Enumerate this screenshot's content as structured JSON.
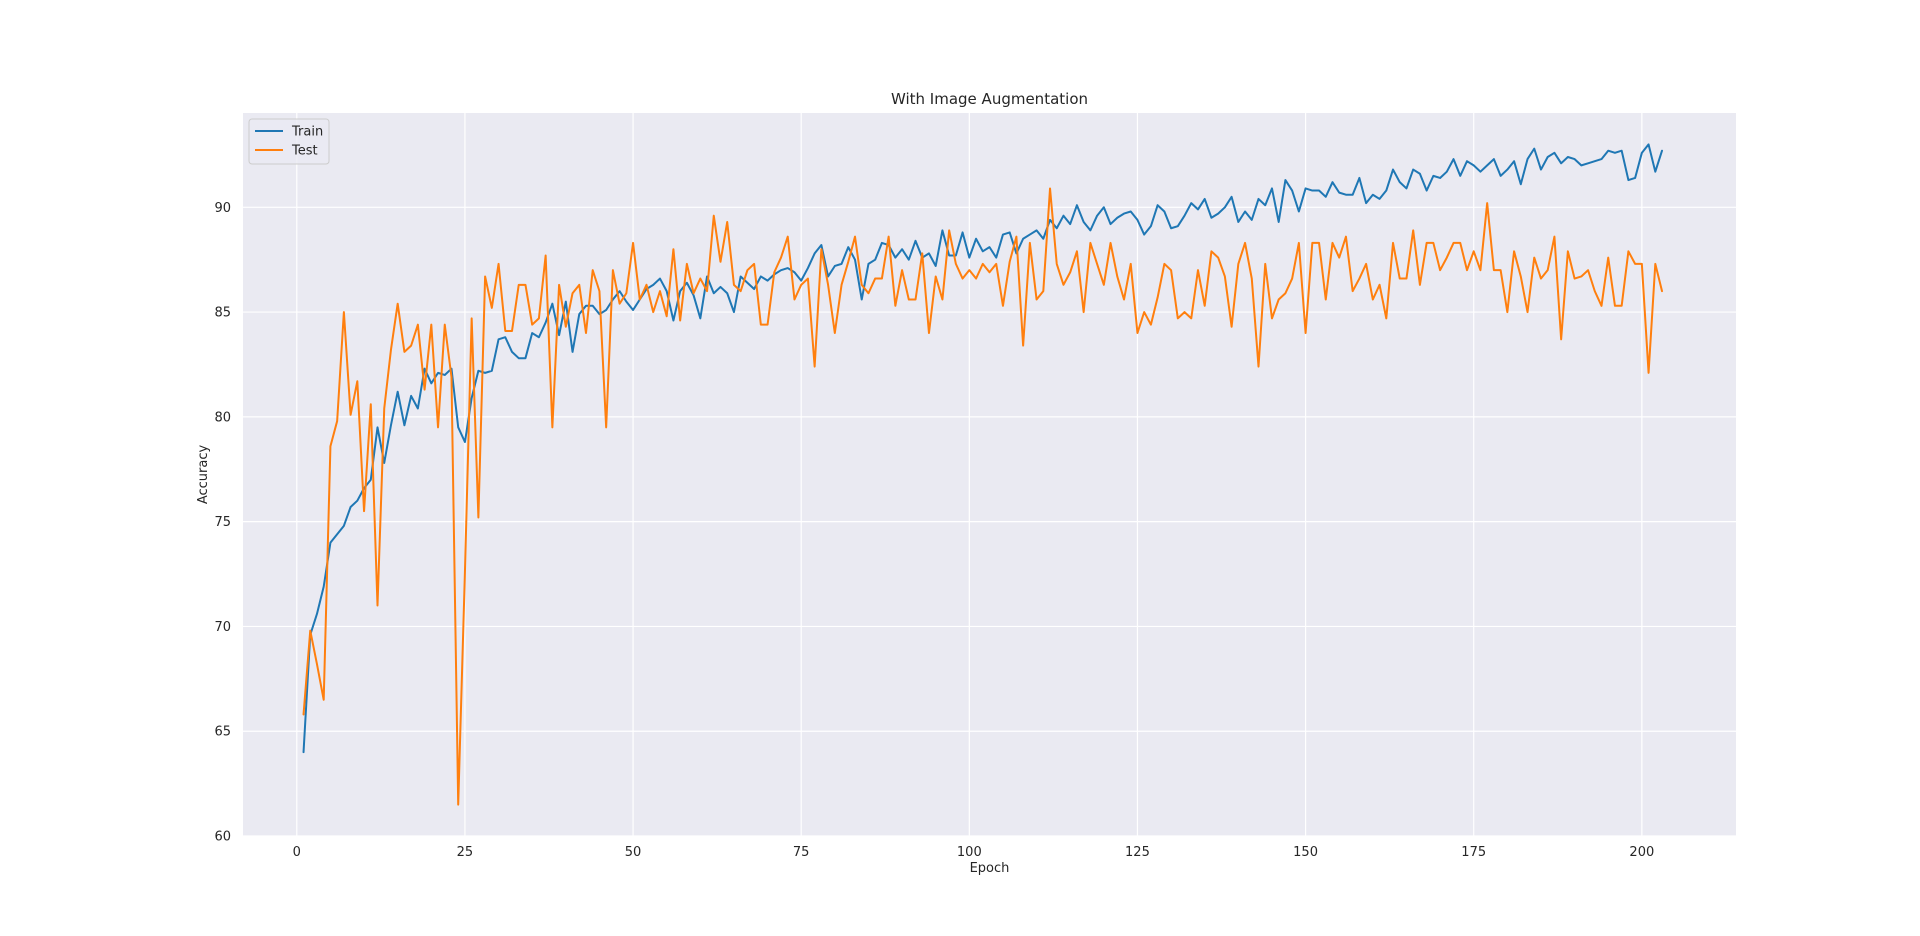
{
  "chart_data": {
    "type": "line",
    "title": "With Image Augmentation",
    "xlabel": "Epoch",
    "ylabel": "Accuracy",
    "xlim": [
      -8,
      214
    ],
    "ylim": [
      60,
      94.5
    ],
    "xticks": [
      0,
      25,
      50,
      75,
      100,
      125,
      150,
      175,
      200
    ],
    "yticks": [
      60,
      65,
      70,
      75,
      80,
      85,
      90
    ],
    "grid": true,
    "legend_position": "upper left",
    "colors": {
      "background": "#eaeaf2",
      "grid": "#ffffff",
      "train": "#1f77b4",
      "test": "#ff7f0e"
    },
    "series": [
      {
        "name": "Train",
        "values": [
          64.0,
          69.6,
          70.6,
          71.9,
          74.0,
          74.4,
          74.8,
          75.7,
          76.0,
          76.6,
          77.0,
          79.5,
          77.8,
          79.6,
          81.2,
          79.6,
          81.0,
          80.4,
          82.3,
          81.6,
          82.1,
          82.0,
          82.3,
          79.5,
          78.8,
          80.9,
          82.2,
          82.1,
          82.2,
          83.7,
          83.8,
          83.1,
          82.8,
          82.8,
          84.0,
          83.8,
          84.5,
          85.4,
          83.9,
          85.5,
          83.1,
          84.9,
          85.3,
          85.3,
          84.9,
          85.1,
          85.6,
          86.0,
          85.5,
          85.1,
          85.6,
          86.1,
          86.3,
          86.6,
          86.0,
          84.6,
          86.0,
          86.4,
          85.8,
          84.7,
          86.7,
          85.9,
          86.2,
          85.9,
          85.0,
          86.7,
          86.4,
          86.1,
          86.7,
          86.5,
          86.8,
          87.0,
          87.1,
          86.9,
          86.5,
          87.1,
          87.8,
          88.2,
          86.7,
          87.2,
          87.3,
          88.1,
          87.5,
          85.6,
          87.3,
          87.5,
          88.3,
          88.2,
          87.6,
          88.0,
          87.5,
          88.4,
          87.6,
          87.8,
          87.2,
          88.9,
          87.7,
          87.7,
          88.8,
          87.6,
          88.5,
          87.9,
          88.1,
          87.6,
          88.7,
          88.8,
          87.8,
          88.5,
          88.7,
          88.9,
          88.5,
          89.4,
          89.0,
          89.6,
          89.2,
          90.1,
          89.3,
          88.9,
          89.6,
          90.0,
          89.2,
          89.5,
          89.7,
          89.8,
          89.4,
          88.7,
          89.1,
          90.1,
          89.8,
          89.0,
          89.1,
          89.6,
          90.2,
          89.9,
          90.4,
          89.5,
          89.7,
          90.0,
          90.5,
          89.3,
          89.8,
          89.4,
          90.4,
          90.1,
          90.9,
          89.3,
          91.3,
          90.8,
          89.8,
          90.9,
          90.8,
          90.8,
          90.5,
          91.2,
          90.7,
          90.6,
          90.6,
          91.4,
          90.2,
          90.6,
          90.4,
          90.8,
          91.8,
          91.2,
          90.9,
          91.8,
          91.6,
          90.8,
          91.5,
          91.4,
          91.7,
          92.3,
          91.5,
          92.2,
          92.0,
          91.7,
          92.0,
          92.3,
          91.5,
          91.8,
          92.2,
          91.1,
          92.3,
          92.8,
          91.8,
          92.4,
          92.6,
          92.1,
          92.4,
          92.3,
          92.0,
          92.1,
          92.2,
          92.3,
          92.7,
          92.6,
          92.7,
          91.3,
          91.4,
          92.6,
          93.0,
          91.7,
          92.7
        ]
      },
      {
        "name": "Test",
        "values": [
          65.8,
          69.8,
          68.2,
          66.5,
          78.6,
          79.8,
          85.0,
          80.1,
          81.7,
          75.5,
          80.6,
          71.0,
          80.4,
          83.2,
          85.4,
          83.1,
          83.4,
          84.4,
          81.3,
          84.4,
          79.5,
          84.4,
          81.9,
          61.5,
          72.6,
          84.7,
          75.2,
          86.7,
          85.2,
          87.3,
          84.1,
          84.1,
          86.3,
          86.3,
          84.4,
          84.7,
          87.7,
          79.5,
          86.3,
          84.3,
          85.9,
          86.3,
          84.0,
          87.0,
          86.0,
          79.5,
          87.0,
          85.4,
          85.9,
          88.3,
          85.6,
          86.3,
          85.0,
          86.0,
          84.8,
          88.0,
          84.6,
          87.3,
          85.9,
          86.6,
          86.0,
          89.6,
          87.4,
          89.3,
          86.3,
          86.0,
          87.0,
          87.3,
          84.4,
          84.4,
          86.9,
          87.6,
          88.6,
          85.6,
          86.3,
          86.6,
          82.4,
          88.0,
          86.3,
          84.0,
          86.3,
          87.4,
          88.6,
          86.3,
          85.9,
          86.6,
          86.6,
          88.6,
          85.3,
          87.0,
          85.6,
          85.6,
          87.8,
          84.0,
          86.7,
          85.6,
          88.9,
          87.3,
          86.6,
          87.0,
          86.6,
          87.3,
          86.9,
          87.3,
          85.3,
          87.4,
          88.6,
          83.4,
          88.3,
          85.6,
          86.0,
          90.9,
          87.3,
          86.3,
          86.9,
          87.9,
          85.0,
          88.3,
          87.3,
          86.3,
          88.3,
          86.7,
          85.6,
          87.3,
          84.0,
          85.0,
          84.4,
          85.7,
          87.3,
          87.0,
          84.7,
          85.0,
          84.7,
          87.0,
          85.3,
          87.9,
          87.6,
          86.7,
          84.3,
          87.3,
          88.3,
          86.6,
          82.4,
          87.3,
          84.7,
          85.6,
          85.9,
          86.6,
          88.3,
          84.0,
          88.3,
          88.3,
          85.6,
          88.3,
          87.6,
          88.6,
          86.0,
          86.6,
          87.3,
          85.6,
          86.3,
          84.7,
          88.3,
          86.6,
          86.6,
          88.9,
          86.3,
          88.3,
          88.3,
          87.0,
          87.6,
          88.3,
          88.3,
          87.0,
          87.9,
          87.0,
          90.2,
          87.0,
          87.0,
          85.0,
          87.9,
          86.7,
          85.0,
          87.6,
          86.6,
          87.0,
          88.6,
          83.7,
          87.9,
          86.6,
          86.7,
          87.0,
          86.0,
          85.3,
          87.6,
          85.3,
          85.3,
          87.9,
          87.3,
          87.3,
          82.1,
          87.3,
          86.0
        ]
      }
    ]
  }
}
